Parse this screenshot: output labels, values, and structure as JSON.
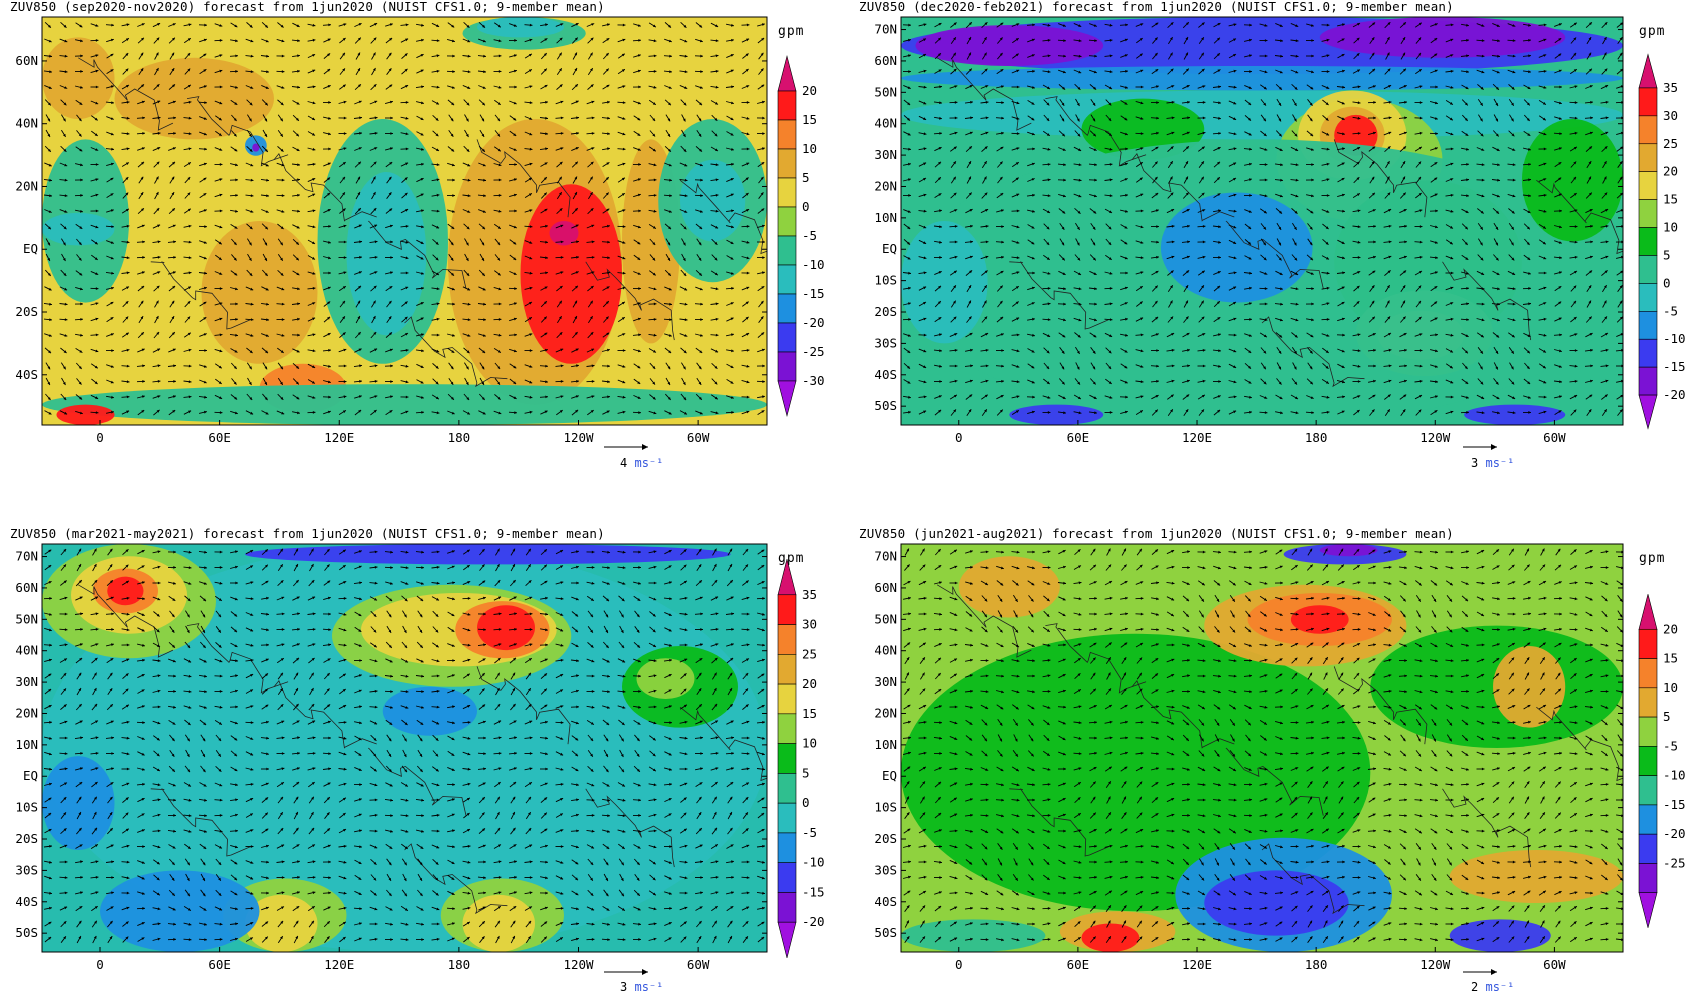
{
  "panels": [
    {
      "title": "ZUV850 (sep2020-nov2020) forecast from 1jun2020 (NUIST CFS1.0; 9-member mean)",
      "lat_labels": [
        "60N",
        "40N",
        "20N",
        "EQ",
        "20S",
        "40S"
      ],
      "lat_values": [
        60,
        40,
        20,
        0,
        -20,
        -40
      ],
      "lat_range": [
        -56,
        74
      ],
      "lon_labels": [
        "0",
        "60E",
        "120E",
        "180",
        "120W",
        "60W"
      ],
      "colorbar_unit": "gpm",
      "colorbar_levels": [
        "20",
        "15",
        "10",
        "5",
        "0",
        "-5",
        "-10",
        "-15",
        "-20",
        "-25",
        "-30"
      ],
      "ref_vector_value": "4",
      "ref_vector_unit": "ms⁻¹",
      "background_color": "#e7d33f"
    },
    {
      "title": "ZUV850 (dec2020-feb2021) forecast from 1jun2020 (NUIST CFS1.0; 9-member mean)",
      "lat_labels": [
        "70N",
        "60N",
        "50N",
        "40N",
        "30N",
        "20N",
        "10N",
        "EQ",
        "10S",
        "20S",
        "30S",
        "40S",
        "50S"
      ],
      "lat_values": [
        70,
        60,
        50,
        40,
        30,
        20,
        10,
        0,
        -10,
        -20,
        -30,
        -40,
        -50
      ],
      "lat_range": [
        -56,
        74
      ],
      "lon_labels": [
        "0",
        "60E",
        "120E",
        "180",
        "120W",
        "60W"
      ],
      "colorbar_unit": "gpm",
      "colorbar_levels": [
        "35",
        "30",
        "25",
        "20",
        "15",
        "10",
        "5",
        "0",
        "-5",
        "-10",
        "-15",
        "-20"
      ],
      "ref_vector_value": "3",
      "ref_vector_unit": "ms⁻¹",
      "background_color": "#2fbf8f"
    },
    {
      "title": "ZUV850 (mar2021-may2021) forecast from 1jun2020 (NUIST CFS1.0; 9-member mean)",
      "lat_labels": [
        "70N",
        "60N",
        "50N",
        "40N",
        "30N",
        "20N",
        "10N",
        "EQ",
        "10S",
        "20S",
        "30S",
        "40S",
        "50S"
      ],
      "lat_values": [
        70,
        60,
        50,
        40,
        30,
        20,
        10,
        0,
        -10,
        -20,
        -30,
        -40,
        -50
      ],
      "lat_range": [
        -56,
        74
      ],
      "lon_labels": [
        "0",
        "60E",
        "120E",
        "180",
        "120W",
        "60W"
      ],
      "colorbar_unit": "gpm",
      "colorbar_levels": [
        "35",
        "30",
        "25",
        "20",
        "15",
        "10",
        "5",
        "0",
        "-5",
        "-10",
        "-15",
        "-20"
      ],
      "ref_vector_value": "3",
      "ref_vector_unit": "ms⁻¹",
      "background_color": "#27bcae"
    },
    {
      "title": "ZUV850 (jun2021-aug2021) forecast from 1jun2020 (NUIST CFS1.0; 9-member mean)",
      "lat_labels": [
        "70N",
        "60N",
        "50N",
        "40N",
        "30N",
        "20N",
        "10N",
        "EQ",
        "10S",
        "20S",
        "30S",
        "40S",
        "50S"
      ],
      "lat_values": [
        70,
        60,
        50,
        40,
        30,
        20,
        10,
        0,
        -10,
        -20,
        -30,
        -40,
        -50
      ],
      "lat_range": [
        -56,
        74
      ],
      "lon_labels": [
        "0",
        "60E",
        "120E",
        "180",
        "120W",
        "60W"
      ],
      "colorbar_unit": "gpm",
      "colorbar_levels": [
        "20",
        "15",
        "10",
        "5",
        "-5",
        "-10",
        "-15",
        "-20",
        "-25"
      ],
      "ref_vector_value": "2",
      "ref_vector_unit": "ms⁻¹",
      "background_color": "#8fd23f"
    }
  ],
  "colorbar_colors": {
    "sep_nov": [
      "#d7106f",
      "#ff1a1a",
      "#f5822b",
      "#e2a930",
      "#e7d33f",
      "#8fd23f",
      "#2fbf8f",
      "#2abdbd",
      "#1e90e0",
      "#3b3bf0",
      "#7b12d4",
      "#a010e0"
    ],
    "dec_feb": [
      "#d7106f",
      "#ff1a1a",
      "#f5822b",
      "#e2a930",
      "#e7d33f",
      "#8fd23f",
      "#0abb1a",
      "#2fbf8f",
      "#2abdbd",
      "#1e90e0",
      "#3b3bf0",
      "#7b12d4",
      "#a010e0"
    ],
    "mar_may": [
      "#d7106f",
      "#ff1a1a",
      "#f5822b",
      "#e2a930",
      "#e7d33f",
      "#8fd23f",
      "#0abb1a",
      "#2fbf8f",
      "#2abdbd",
      "#1e90e0",
      "#3b3bf0",
      "#7b12d4",
      "#a010e0"
    ],
    "jun_aug": [
      "#d7106f",
      "#ff1a1a",
      "#f5822b",
      "#e2a930",
      "#8fd23f",
      "#0abb1a",
      "#2fbf8f",
      "#1e90e0",
      "#3b3bf0",
      "#7b12d4",
      "#a010e0"
    ]
  }
}
